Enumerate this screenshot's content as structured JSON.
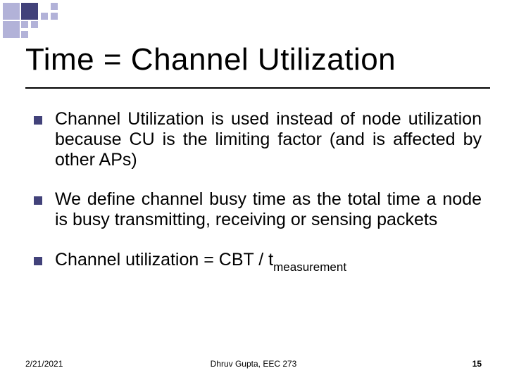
{
  "decoration": {
    "color_light": "#b2b2d8",
    "color_dark": "#42427a"
  },
  "title": "Time = Channel Utilization",
  "title_fontsize": 44,
  "underline_color": "#000000",
  "bullets": [
    {
      "text": "Channel Utilization is used instead of node utilization because CU is the limiting factor (and is affected by other APs)"
    },
    {
      "text": "We define channel busy time as the total time a node is busy transmitting, receiving or sensing packets"
    },
    {
      "text_prefix": "Channel utilization = CBT / t",
      "subscript": "measurement"
    }
  ],
  "bullet_marker_color": "#42427a",
  "body_fontsize": 25,
  "footer": {
    "date": "2/21/2021",
    "center": "Dhruv Gupta, EEC 273",
    "page": "15"
  },
  "background_color": "#ffffff",
  "text_color": "#000000"
}
